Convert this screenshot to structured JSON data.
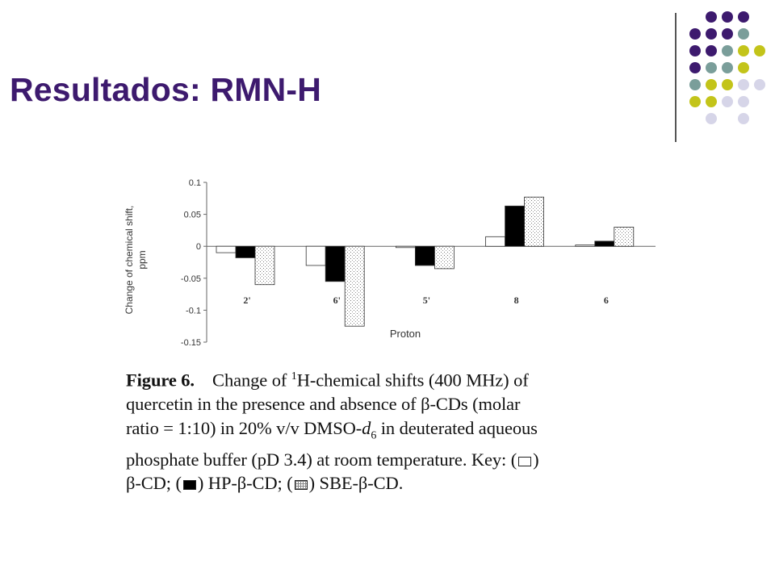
{
  "slide": {
    "title": "Resultados: RMN-H"
  },
  "decoration": {
    "dot_colors": [
      "#3d1a6e",
      "#7a9e9a",
      "#c3c41a",
      "#d6d5e8"
    ]
  },
  "chart_data": {
    "type": "bar",
    "title": "",
    "xlabel": "Proton",
    "ylabel": "Change of chemical shift, ppm",
    "categories": [
      "2'",
      "6'",
      "5'",
      "8",
      "6"
    ],
    "series": [
      {
        "key": "bcd",
        "fill": "open",
        "values": [
          -0.01,
          -0.03,
          -0.002,
          0.015,
          0.002
        ]
      },
      {
        "key": "hp",
        "fill": "filled",
        "values": [
          -0.018,
          -0.055,
          -0.03,
          0.063,
          0.008
        ]
      },
      {
        "key": "sbe",
        "fill": "dotted",
        "values": [
          -0.06,
          -0.125,
          -0.035,
          0.077,
          0.03
        ]
      }
    ],
    "ylim": [
      -0.15,
      0.1
    ],
    "yticks": [
      "0.1",
      "0.05",
      "0",
      "-0.05",
      "-0.1",
      "-0.15"
    ],
    "ytick_values": [
      0.1,
      0.05,
      0,
      -0.05,
      -0.1,
      -0.15
    ],
    "grid": false,
    "legend": "none"
  },
  "caption": {
    "figure_label": "Figure 6.",
    "line1_a": "Change of ",
    "sup": "1",
    "line1_b": "H-chemical shifts (400 MHz) of",
    "line2": "quercetin in the presence and absence of β-CDs (molar",
    "line3": "ratio = 1:10) in 20% v/v DMSO-",
    "dmso_d": "d",
    "dmso_sub": "6",
    "line3_b": " in deuterated aqueous",
    "line4": "phosphate buffer (pD 3.4) at room temperature. Key: (",
    "line4_end": ")",
    "key1": "β-CD; (",
    "key2": ") HP-β-CD; (",
    "key3": ") SBE-β-CD."
  }
}
